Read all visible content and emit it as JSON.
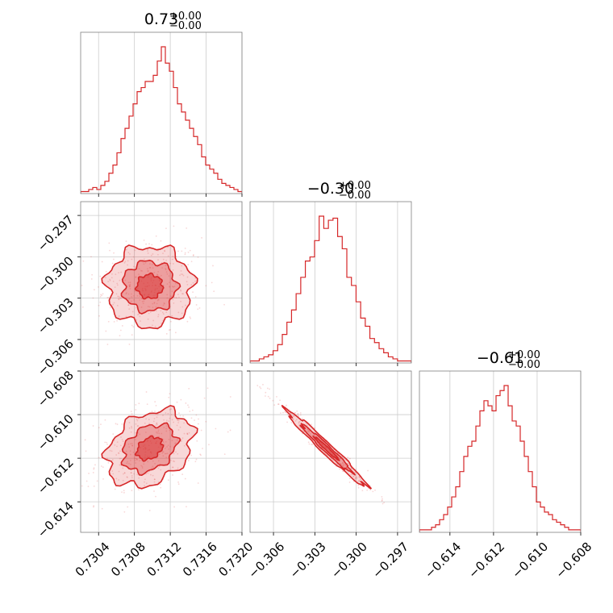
{
  "chart_data": {
    "type": "corner",
    "color": "#d62728",
    "parameters": [
      {
        "median": 0.73097,
        "sigma": 0.00024,
        "range": [
          0.7302,
          0.732
        ],
        "ticks": [
          0.7304,
          0.7308,
          0.7312,
          0.7316,
          0.732
        ],
        "tick_labels": [
          "0.7304",
          "0.7308",
          "0.7312",
          "0.7316",
          "0.7320"
        ],
        "title": "0.73",
        "title_plus": "+0.00",
        "title_minus": "−0.00"
      },
      {
        "median": -0.30215,
        "sigma": 0.00145,
        "range": [
          -0.3077,
          -0.296
        ],
        "ticks": [
          -0.306,
          -0.303,
          -0.3,
          -0.297
        ],
        "tick_labels": [
          "−0.306",
          "−0.303",
          "−0.300",
          "−0.297"
        ],
        "title": "−0.30",
        "title_plus": "+0.00",
        "title_minus": "−0.00"
      },
      {
        "median": -0.61155,
        "sigma": 0.00087,
        "range": [
          -0.6154,
          -0.608
        ],
        "ticks": [
          -0.614,
          -0.612,
          -0.61,
          -0.608
        ],
        "tick_labels": [
          "−0.614",
          "−0.612",
          "−0.610",
          "−0.608"
        ],
        "title": "−0.61",
        "title_plus": "+0.00",
        "title_minus": "−0.00"
      }
    ],
    "correlations": {
      "0-1": 0.0,
      "0-2": 0.3,
      "1-2": -0.98
    },
    "histograms": [
      [
        1,
        1,
        2,
        3,
        2,
        4,
        6,
        10,
        14,
        20,
        27,
        32,
        38,
        44,
        50,
        52,
        55,
        55,
        58,
        65,
        72,
        64,
        60,
        52,
        44,
        40,
        36,
        32,
        28,
        24,
        18,
        14,
        12,
        10,
        7,
        5,
        4,
        3,
        2,
        1
      ],
      [
        1,
        1,
        2,
        3,
        4,
        6,
        9,
        14,
        20,
        26,
        34,
        42,
        50,
        52,
        60,
        72,
        66,
        70,
        71,
        62,
        56,
        42,
        38,
        30,
        22,
        18,
        12,
        10,
        7,
        5,
        3,
        2,
        1,
        1,
        1
      ],
      [
        1,
        1,
        1,
        2,
        3,
        5,
        7,
        10,
        14,
        18,
        24,
        30,
        34,
        36,
        42,
        48,
        52,
        50,
        48,
        54,
        56,
        58,
        50,
        44,
        42,
        36,
        30,
        24,
        18,
        12,
        10,
        8,
        7,
        5,
        4,
        3,
        2,
        1,
        1,
        1
      ]
    ]
  }
}
